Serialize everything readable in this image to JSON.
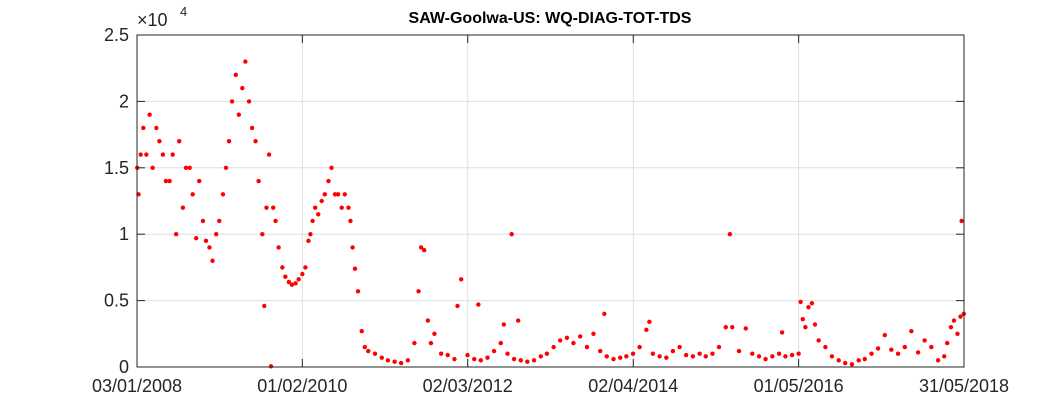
{
  "chart_data": {
    "type": "scatter",
    "title": "SAW-Goolwa-US: WQ-DIAG-TOT-TDS",
    "xlabel": "",
    "ylabel": "",
    "exponent_label": "×10",
    "exponent_power": "4",
    "xlim": [
      "2008-01-03",
      "2018-05-31"
    ],
    "ylim": [
      0,
      25000
    ],
    "x_ticks": [
      "2008-01-03",
      "2010-02-01",
      "2012-03-02",
      "2014-04-02",
      "2016-05-01",
      "2018-05-31"
    ],
    "x_tick_labels": [
      "03/01/2008",
      "01/02/2010",
      "02/03/2012",
      "02/04/2014",
      "01/05/2016",
      "31/05/2018"
    ],
    "y_ticks": [
      0,
      5000,
      10000,
      15000,
      20000,
      25000
    ],
    "y_tick_labels": [
      "0",
      "0.5",
      "1",
      "1.5",
      "2",
      "2.5"
    ],
    "grid": true,
    "marker_color": "#ff0000",
    "series": [
      {
        "points": [
          [
            "2008-01-04",
            15000
          ],
          [
            "2008-01-10",
            13000
          ],
          [
            "2008-01-20",
            16000
          ],
          [
            "2008-02-01",
            18000
          ],
          [
            "2008-02-15",
            16000
          ],
          [
            "2008-03-01",
            19000
          ],
          [
            "2008-03-15",
            15000
          ],
          [
            "2008-04-01",
            18000
          ],
          [
            "2008-04-15",
            17000
          ],
          [
            "2008-05-01",
            16000
          ],
          [
            "2008-05-15",
            14000
          ],
          [
            "2008-06-01",
            14000
          ],
          [
            "2008-06-15",
            16000
          ],
          [
            "2008-07-01",
            10000
          ],
          [
            "2008-07-15",
            17000
          ],
          [
            "2008-08-01",
            12000
          ],
          [
            "2008-08-15",
            15000
          ],
          [
            "2008-09-01",
            15000
          ],
          [
            "2008-09-15",
            13000
          ],
          [
            "2008-10-01",
            9700
          ],
          [
            "2008-10-15",
            14000
          ],
          [
            "2008-11-01",
            11000
          ],
          [
            "2008-11-15",
            9500
          ],
          [
            "2008-12-01",
            9000
          ],
          [
            "2008-12-15",
            8000
          ],
          [
            "2009-01-01",
            10000
          ],
          [
            "2009-01-15",
            11000
          ],
          [
            "2009-02-01",
            13000
          ],
          [
            "2009-02-15",
            15000
          ],
          [
            "2009-03-01",
            17000
          ],
          [
            "2009-03-15",
            20000
          ],
          [
            "2009-04-01",
            22000
          ],
          [
            "2009-04-15",
            19000
          ],
          [
            "2009-05-01",
            21000
          ],
          [
            "2009-05-15",
            23000
          ],
          [
            "2009-06-01",
            20000
          ],
          [
            "2009-06-15",
            18000
          ],
          [
            "2009-07-01",
            17000
          ],
          [
            "2009-07-15",
            14000
          ],
          [
            "2009-08-01",
            10000
          ],
          [
            "2009-08-10",
            4600
          ],
          [
            "2009-08-20",
            12000
          ],
          [
            "2009-09-01",
            16000
          ],
          [
            "2009-09-10",
            50
          ],
          [
            "2009-09-20",
            12000
          ],
          [
            "2009-10-01",
            11000
          ],
          [
            "2009-10-15",
            9000
          ],
          [
            "2009-11-01",
            7500
          ],
          [
            "2009-11-15",
            6800
          ],
          [
            "2009-12-01",
            6400
          ],
          [
            "2009-12-15",
            6200
          ],
          [
            "2010-01-01",
            6300
          ],
          [
            "2010-01-15",
            6600
          ],
          [
            "2010-02-01",
            7000
          ],
          [
            "2010-02-15",
            7500
          ],
          [
            "2010-03-01",
            9500
          ],
          [
            "2010-03-10",
            10000
          ],
          [
            "2010-03-20",
            11000
          ],
          [
            "2010-04-01",
            12000
          ],
          [
            "2010-04-15",
            11500
          ],
          [
            "2010-05-01",
            12500
          ],
          [
            "2010-05-15",
            13000
          ],
          [
            "2010-06-01",
            14000
          ],
          [
            "2010-06-15",
            15000
          ],
          [
            "2010-07-01",
            13000
          ],
          [
            "2010-07-15",
            13000
          ],
          [
            "2010-08-01",
            12000
          ],
          [
            "2010-08-15",
            13000
          ],
          [
            "2010-09-01",
            12000
          ],
          [
            "2010-09-10",
            11000
          ],
          [
            "2010-09-20",
            9000
          ],
          [
            "2010-10-01",
            7400
          ],
          [
            "2010-10-15",
            5700
          ],
          [
            "2010-11-01",
            2700
          ],
          [
            "2010-11-15",
            1500
          ],
          [
            "2010-12-01",
            1200
          ],
          [
            "2011-01-01",
            1000
          ],
          [
            "2011-02-01",
            700
          ],
          [
            "2011-03-01",
            500
          ],
          [
            "2011-04-01",
            400
          ],
          [
            "2011-05-01",
            300
          ],
          [
            "2011-06-01",
            500
          ],
          [
            "2011-07-01",
            1800
          ],
          [
            "2011-07-20",
            5700
          ],
          [
            "2011-08-01",
            9000
          ],
          [
            "2011-08-15",
            8800
          ],
          [
            "2011-09-01",
            3500
          ],
          [
            "2011-09-15",
            1800
          ],
          [
            "2011-10-01",
            2500
          ],
          [
            "2011-11-01",
            1000
          ],
          [
            "2011-12-01",
            900
          ],
          [
            "2012-01-01",
            600
          ],
          [
            "2012-01-15",
            4600
          ],
          [
            "2012-02-01",
            6600
          ],
          [
            "2012-03-01",
            900
          ],
          [
            "2012-04-01",
            600
          ],
          [
            "2012-04-20",
            4700
          ],
          [
            "2012-05-01",
            500
          ],
          [
            "2012-06-01",
            700
          ],
          [
            "2012-07-01",
            1200
          ],
          [
            "2012-08-01",
            1800
          ],
          [
            "2012-08-15",
            3200
          ],
          [
            "2012-09-01",
            1000
          ],
          [
            "2012-09-20",
            10000
          ],
          [
            "2012-10-01",
            600
          ],
          [
            "2012-10-20",
            3500
          ],
          [
            "2012-11-01",
            500
          ],
          [
            "2012-12-01",
            400
          ],
          [
            "2013-01-01",
            500
          ],
          [
            "2013-02-01",
            800
          ],
          [
            "2013-03-01",
            1000
          ],
          [
            "2013-04-01",
            1500
          ],
          [
            "2013-05-01",
            2000
          ],
          [
            "2013-06-01",
            2200
          ],
          [
            "2013-07-01",
            1800
          ],
          [
            "2013-08-01",
            2300
          ],
          [
            "2013-09-01",
            1500
          ],
          [
            "2013-10-01",
            2500
          ],
          [
            "2013-11-01",
            1200
          ],
          [
            "2013-11-20",
            4000
          ],
          [
            "2013-12-01",
            800
          ],
          [
            "2014-01-01",
            600
          ],
          [
            "2014-02-01",
            700
          ],
          [
            "2014-03-01",
            800
          ],
          [
            "2014-04-01",
            1000
          ],
          [
            "2014-05-01",
            1500
          ],
          [
            "2014-06-01",
            2800
          ],
          [
            "2014-06-15",
            3400
          ],
          [
            "2014-07-01",
            1000
          ],
          [
            "2014-08-01",
            800
          ],
          [
            "2014-09-01",
            700
          ],
          [
            "2014-10-01",
            1200
          ],
          [
            "2014-11-01",
            1500
          ],
          [
            "2014-12-01",
            900
          ],
          [
            "2015-01-01",
            800
          ],
          [
            "2015-02-01",
            1000
          ],
          [
            "2015-03-01",
            800
          ],
          [
            "2015-04-01",
            1000
          ],
          [
            "2015-05-01",
            1500
          ],
          [
            "2015-06-01",
            3000
          ],
          [
            "2015-06-20",
            10000
          ],
          [
            "2015-07-01",
            3000
          ],
          [
            "2015-08-01",
            1200
          ],
          [
            "2015-09-01",
            2900
          ],
          [
            "2015-10-01",
            1000
          ],
          [
            "2015-11-01",
            800
          ],
          [
            "2015-12-01",
            600
          ],
          [
            "2016-01-01",
            800
          ],
          [
            "2016-02-01",
            1000
          ],
          [
            "2016-02-15",
            2600
          ],
          [
            "2016-03-01",
            800
          ],
          [
            "2016-04-01",
            900
          ],
          [
            "2016-05-01",
            1000
          ],
          [
            "2016-05-10",
            4900
          ],
          [
            "2016-05-20",
            3600
          ],
          [
            "2016-06-01",
            3000
          ],
          [
            "2016-06-15",
            4500
          ],
          [
            "2016-07-01",
            4800
          ],
          [
            "2016-07-15",
            3200
          ],
          [
            "2016-08-01",
            2000
          ],
          [
            "2016-09-01",
            1500
          ],
          [
            "2016-10-01",
            800
          ],
          [
            "2016-11-01",
            500
          ],
          [
            "2016-12-01",
            300
          ],
          [
            "2017-01-01",
            200
          ],
          [
            "2017-02-01",
            500
          ],
          [
            "2017-03-01",
            600
          ],
          [
            "2017-04-01",
            1000
          ],
          [
            "2017-05-01",
            1400
          ],
          [
            "2017-06-01",
            2400
          ],
          [
            "2017-07-01",
            1300
          ],
          [
            "2017-08-01",
            1000
          ],
          [
            "2017-09-01",
            1500
          ],
          [
            "2017-10-01",
            2700
          ],
          [
            "2017-11-01",
            1100
          ],
          [
            "2017-12-01",
            2000
          ],
          [
            "2018-01-01",
            1500
          ],
          [
            "2018-02-01",
            500
          ],
          [
            "2018-03-01",
            800
          ],
          [
            "2018-03-15",
            1800
          ],
          [
            "2018-04-01",
            3000
          ],
          [
            "2018-04-15",
            3500
          ],
          [
            "2018-05-01",
            2500
          ],
          [
            "2018-05-15",
            3800
          ],
          [
            "2018-05-20",
            11000
          ],
          [
            "2018-05-30",
            4000
          ]
        ]
      }
    ]
  }
}
